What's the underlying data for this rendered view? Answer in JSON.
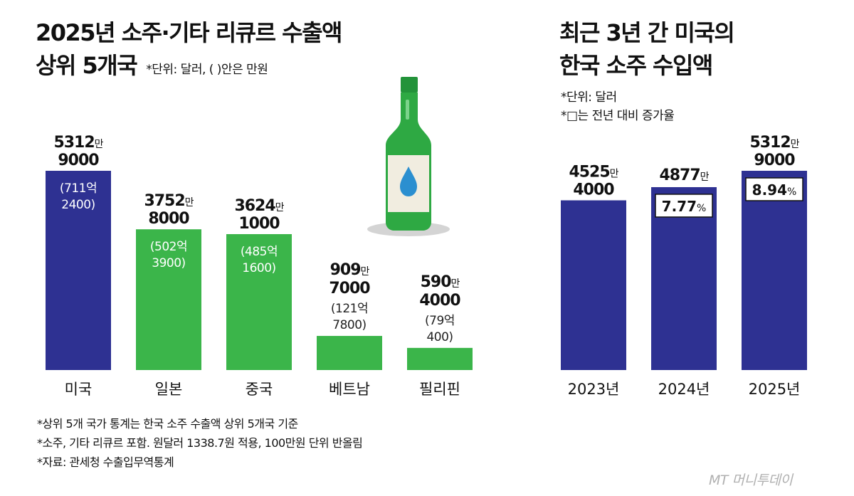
{
  "left": {
    "title_line1": "2025년 소주·기타 리큐르 수출액",
    "title_line2": "상위 5개국",
    "unit_note": "*단위: 달러, (   )안은 만원"
  },
  "right": {
    "title_line1": "최근 3년 간 미국의",
    "title_line2": "한국 소주 수입액",
    "unit_note": "*단위: 달러",
    "box_note": "*□는 전년 대비 증가율"
  },
  "footnotes": [
    "*상위 5개 국가 통계는 한국 소주 수출액 상위 5개국 기준",
    "*소주, 기타 리큐르 포함. 원달러 1338.7원 적용, 100만원 단위 반올림",
    "*자료: 관세청 수출입무역통계"
  ],
  "logo_text": "MT 머니투데이",
  "colors": {
    "navy": "#2e3192",
    "green": "#3bb54a",
    "bottle": "#2ea943",
    "text": "#111111"
  },
  "chart_data": [
    {
      "type": "bar",
      "title": "2025년 소주·기타 리큐르 수출액 상위 5개국",
      "categories": [
        "미국",
        "일본",
        "중국",
        "베트남",
        "필리핀"
      ],
      "values": [
        53129000,
        37528000,
        36241000,
        9097000,
        5904000
      ],
      "value_labels": [
        {
          "main": "5312",
          "man": "만",
          "rest": "9000"
        },
        {
          "main": "3752",
          "man": "만",
          "rest": "8000"
        },
        {
          "main": "3624",
          "man": "만",
          "rest": "1000"
        },
        {
          "main": "909",
          "man": "만",
          "rest": "7000"
        },
        {
          "main": "590",
          "man": "만",
          "rest": "4000"
        }
      ],
      "krw_labels": [
        [
          "(711억",
          "2400)"
        ],
        [
          "(502억",
          "3900)"
        ],
        [
          "(485억",
          "1600)"
        ],
        [
          "(121억",
          "7800)"
        ],
        [
          "(79억",
          "400)"
        ]
      ],
      "bar_colors": [
        "#2e3192",
        "#3bb54a",
        "#3bb54a",
        "#3bb54a",
        "#3bb54a"
      ],
      "ylim": [
        0,
        53129000
      ]
    },
    {
      "type": "bar",
      "title": "최근 3년 간 미국의 한국 소주 수입액",
      "categories": [
        "2023년",
        "2024년",
        "2025년"
      ],
      "values": [
        45254000,
        48770000,
        53129000
      ],
      "value_labels": [
        {
          "main": "4525",
          "man": "만",
          "rest": "4000"
        },
        {
          "main": "4877",
          "man": "만",
          "rest": ""
        },
        {
          "main": "5312",
          "man": "만",
          "rest": "9000"
        }
      ],
      "growth": [
        "",
        "7.77",
        "8.94"
      ],
      "growth_unit": "%",
      "bar_color": "#2e3192",
      "ylim": [
        0,
        53129000
      ]
    }
  ]
}
